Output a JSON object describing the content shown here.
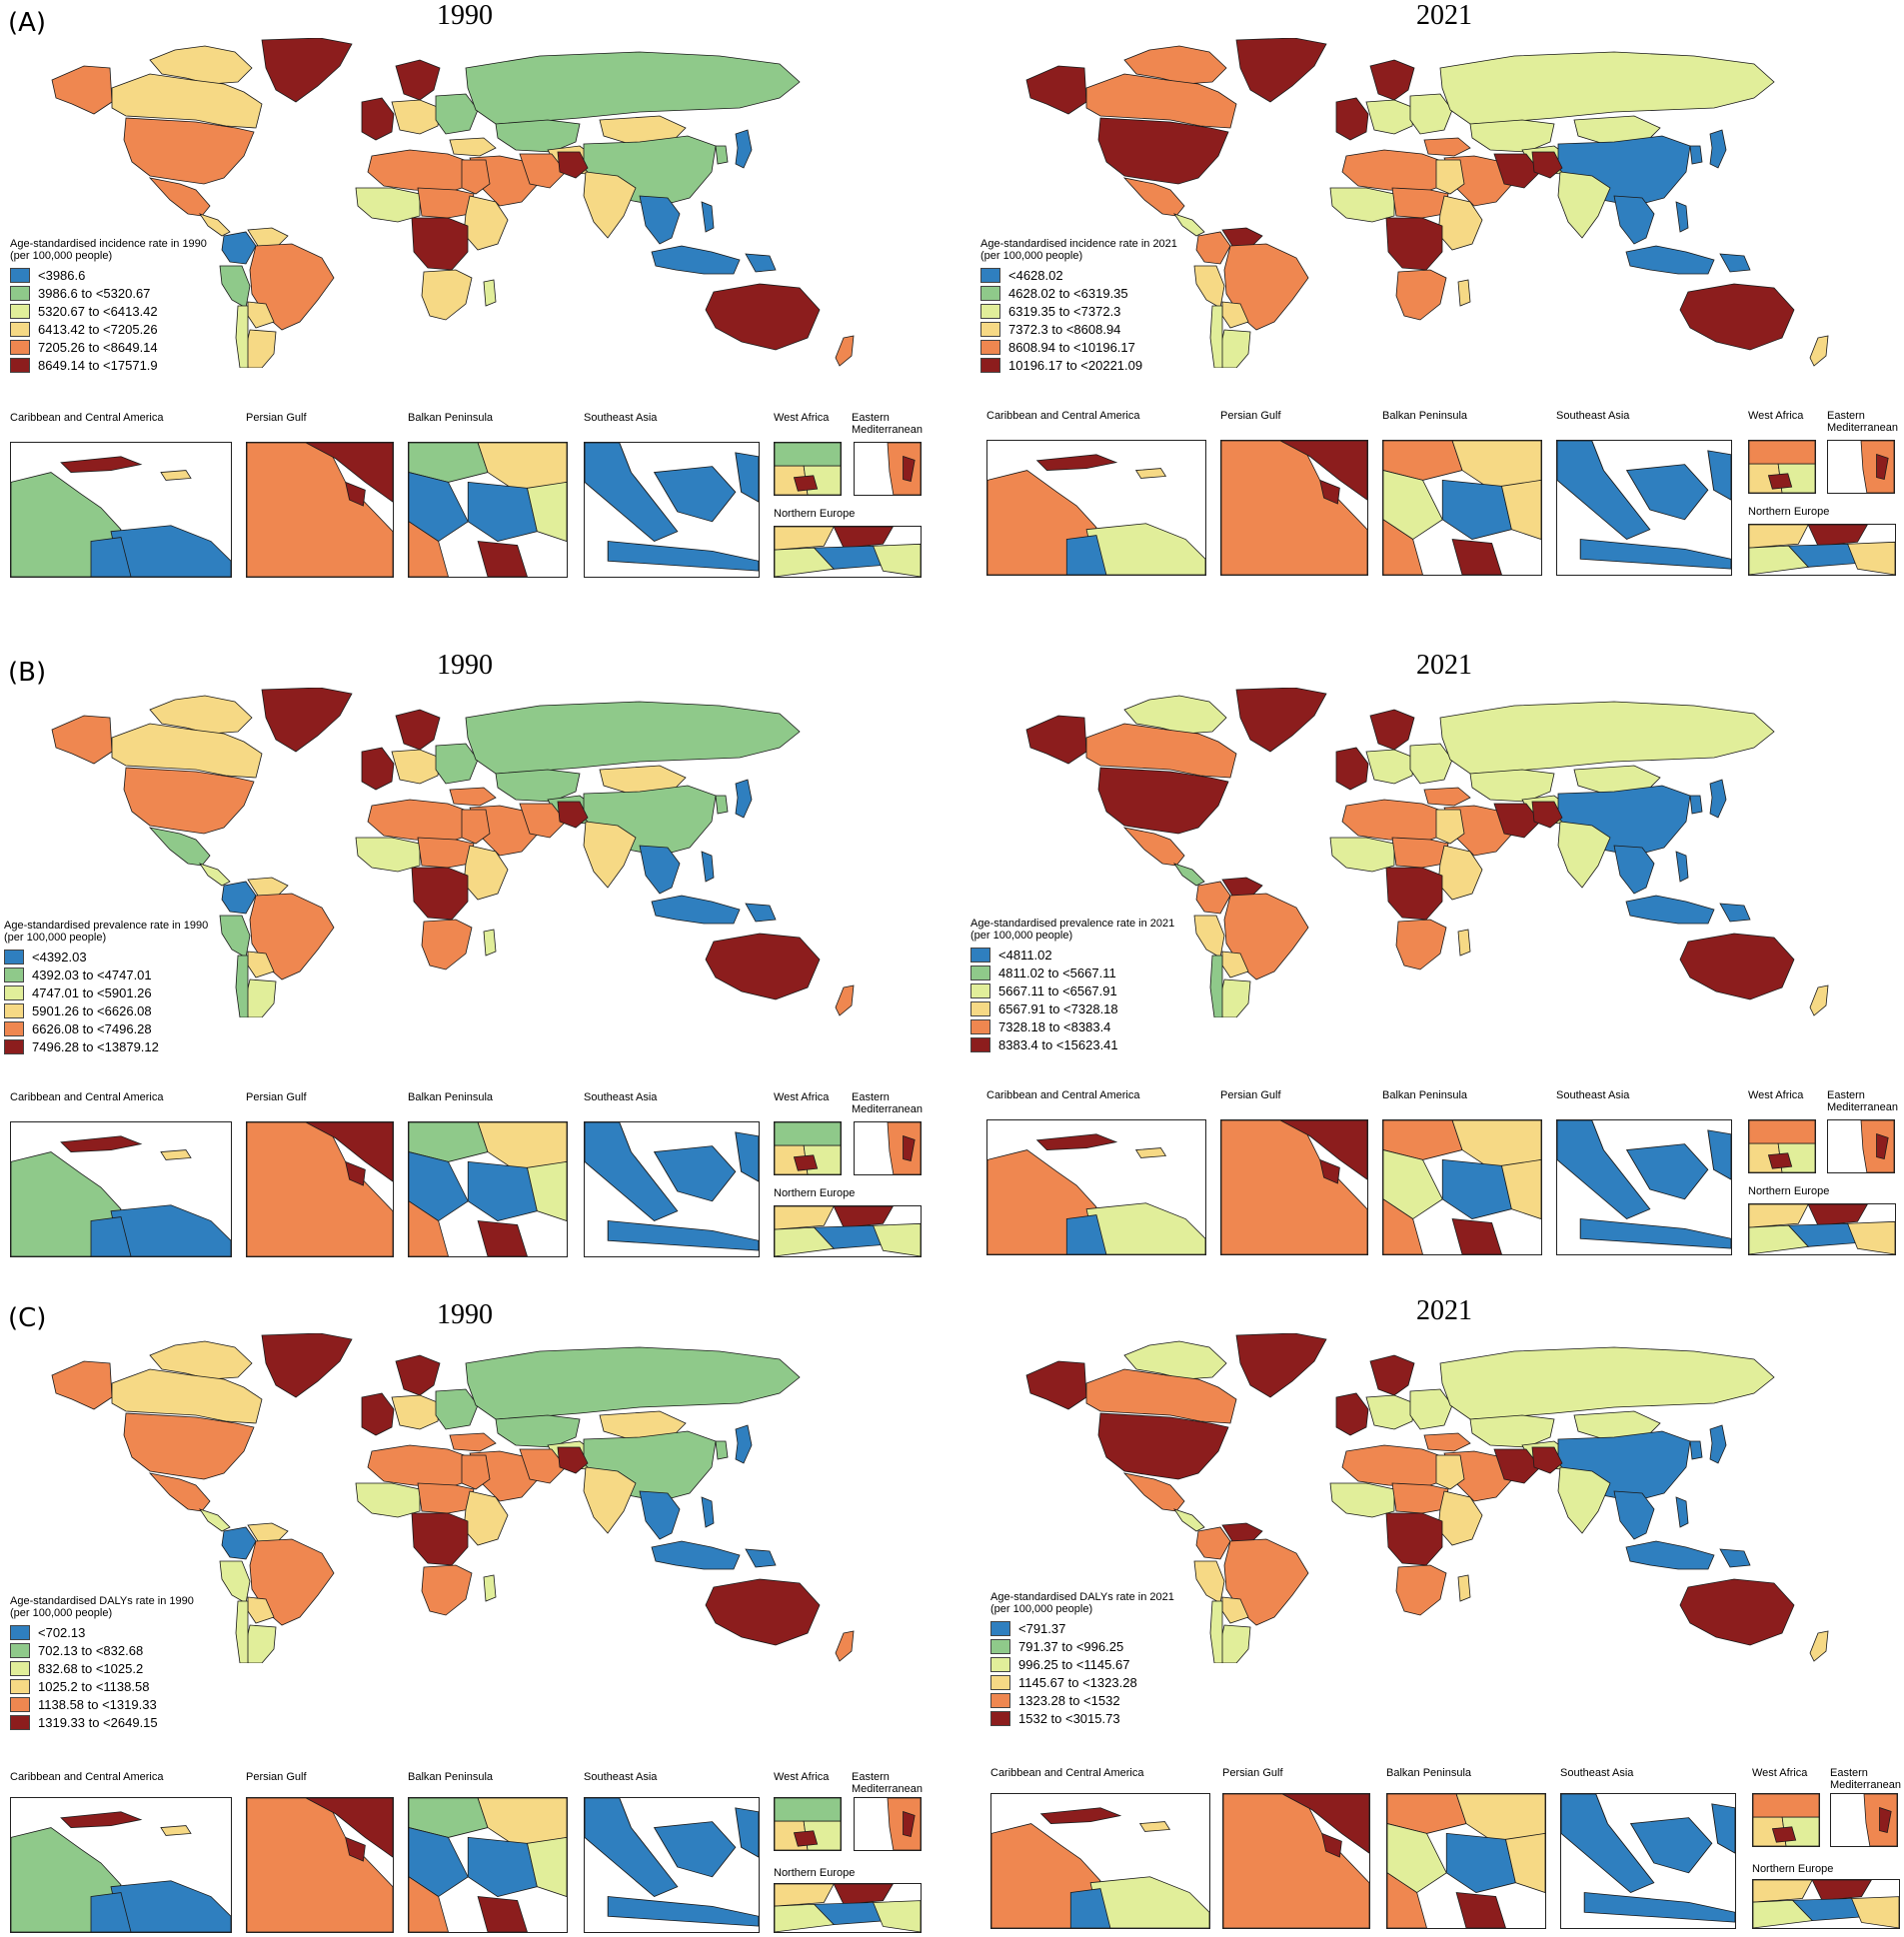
{
  "colors": {
    "c1": "#2f7fbf",
    "c2": "#8fc98a",
    "c3": "#e1ee9a",
    "c4": "#f6d985",
    "c5": "#ef8750",
    "c6": "#8c1d1d",
    "ocean": "#ffffff"
  },
  "insets": {
    "caribbean": "Caribbean and Central America",
    "persian": "Persian Gulf",
    "balkan": "Balkan Peninsula",
    "seasia": "Southeast Asia",
    "westafrica": "West Africa",
    "eastmed": "Eastern Mediterranean",
    "northeurope": "Northern Europe"
  },
  "panels": [
    {
      "letter": "(A)",
      "maps": [
        {
          "year": "1990",
          "legend_title": "Age-standardised incidence rate in 1990",
          "legend_sub": "(per 100,000 people)",
          "legend": [
            "<3986.6",
            "3986.6 to <5320.67",
            "5320.67 to <6413.42",
            "6413.42 to <7205.26",
            "7205.26 to <8649.14",
            "8649.14 to <17571.9"
          ]
        },
        {
          "year": "2021",
          "legend_title": "Age-standardised incidence rate in 2021",
          "legend_sub": "(per 100,000 people)",
          "legend": [
            "<4628.02",
            "4628.02 to <6319.35",
            "6319.35 to <7372.3",
            "7372.3 to <8608.94",
            "8608.94 to <10196.17",
            "10196.17 to <20221.09"
          ]
        }
      ]
    },
    {
      "letter": "(B)",
      "maps": [
        {
          "year": "1990",
          "legend_title": "Age-standardised prevalence rate in 1990",
          "legend_sub": "(per 100,000 people)",
          "legend": [
            "<4392.03",
            "4392.03 to <4747.01",
            "4747.01 to <5901.26",
            "5901.26 to <6626.08",
            "6626.08 to <7496.28",
            "7496.28 to <13879.12"
          ]
        },
        {
          "year": "2021",
          "legend_title": "Age-standardised prevalence rate in 2021",
          "legend_sub": "(per 100,000 people)",
          "legend": [
            "<4811.02",
            "4811.02 to <5667.11",
            "5667.11 to <6567.91",
            "6567.91 to <7328.18",
            "7328.18 to <8383.4",
            "8383.4 to <15623.41"
          ]
        }
      ]
    },
    {
      "letter": "(C)",
      "maps": [
        {
          "year": "1990",
          "legend_title": "Age-standardised DALYs rate in 1990",
          "legend_sub": "(per 100,000 people)",
          "legend": [
            "<702.13",
            "702.13 to <832.68",
            "832.68 to <1025.2",
            "1025.2 to <1138.58",
            "1138.58 to <1319.33",
            "1319.33 to <2649.15"
          ]
        },
        {
          "year": "2021",
          "legend_title": "Age-standardised DALYs rate in 2021",
          "legend_sub": "(per 100,000 people)",
          "legend": [
            "<791.37",
            "791.37 to <996.25",
            "996.25 to <1145.67",
            "1145.67 to <1323.28",
            "1323.28 to <1532",
            "1532 to <3015.73"
          ]
        }
      ]
    }
  ]
}
